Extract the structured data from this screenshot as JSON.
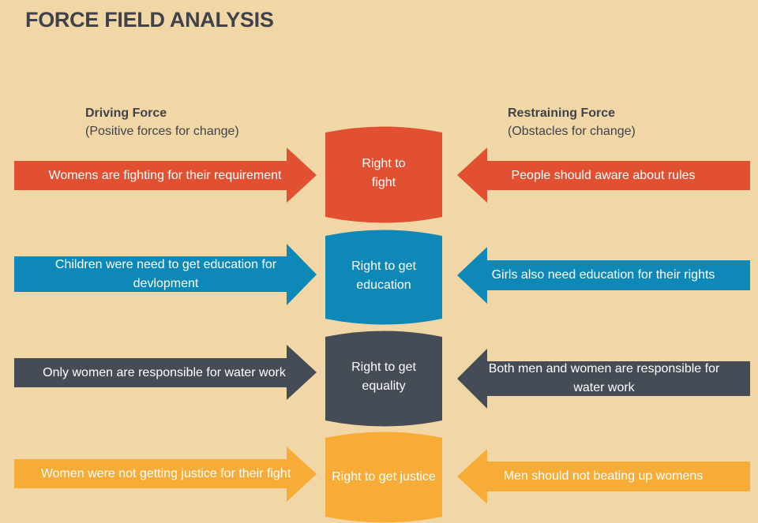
{
  "title": "FORCE FIELD ANALYSIS",
  "driving": {
    "heading": "Driving Force",
    "subheading": "(Positive forces for change)"
  },
  "restraining": {
    "heading": "Restraining Force",
    "subheading": "(Obstacles for change)"
  },
  "colors": {
    "background": "#f2d7a6",
    "red": "#e15031",
    "blue": "#0e88b7",
    "dark": "#464c55",
    "orange": "#f7ac37",
    "text": "#3f4349"
  },
  "rows": [
    {
      "center": "Right to fight",
      "driving": "Womens are fighting for their requirement",
      "restraining": "People should aware about rules",
      "color": "red"
    },
    {
      "center": "Right to get education",
      "driving": "Children were need to get education for devlopment",
      "restraining": "Girls also need education for their rights",
      "color": "blue"
    },
    {
      "center": "Right to get equality",
      "driving": "Only women are responsible for water work",
      "restraining": "Both men and women are responsible for water work",
      "color": "dark"
    },
    {
      "center": "Right to get justice",
      "driving": "Women were not getting justice for their fight",
      "restraining": "Men should not beating up womens",
      "color": "orange"
    }
  ]
}
